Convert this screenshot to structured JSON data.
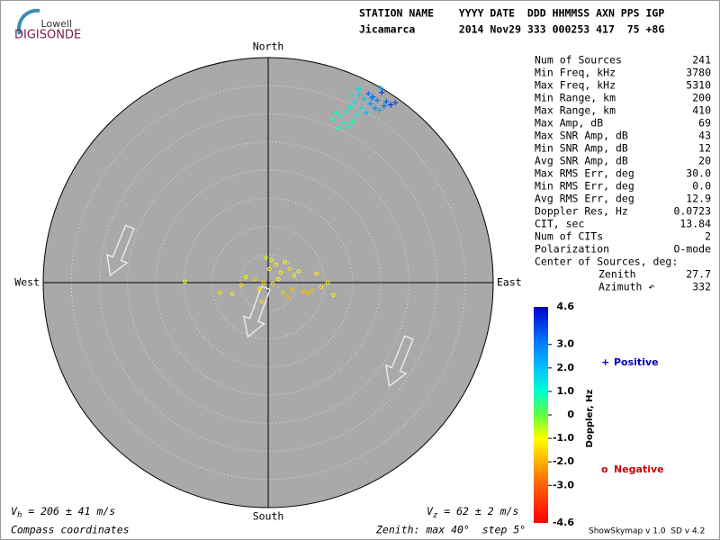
{
  "logo": {
    "brand": "Lowell",
    "product": "DIGISONDE"
  },
  "header": {
    "row1": "STATION NAME    YYYY DATE  DDD HHMMSS AXN PPS IGP",
    "row2": "Jicamarca       2014 Nov29 333 000253 417  75 +8G"
  },
  "stats": {
    "rows": [
      [
        "Num of Sources",
        "241"
      ],
      [
        "Min Freq, kHz",
        "3780"
      ],
      [
        "Max Freq, kHz",
        "5310"
      ],
      [
        "Min Range, km",
        "200"
      ],
      [
        "Max Range, km",
        "410"
      ],
      [
        "Max Amp, dB",
        "69"
      ],
      [
        "Max SNR Amp, dB",
        "43"
      ],
      [
        "Min SNR Amp, dB",
        "12"
      ],
      [
        "Avg SNR Amp, dB",
        "20"
      ],
      [
        "Max RMS Err, deg",
        "30.0"
      ],
      [
        "Min RMS Err, deg",
        "0.0"
      ],
      [
        "Avg RMS Err, deg",
        "12.9"
      ],
      [
        "Doppler Res, Hz",
        "0.0723"
      ],
      [
        "CIT, sec",
        "13.84"
      ],
      [
        "Num of CITs",
        "2"
      ],
      [
        "Polarization",
        "O-mode"
      ]
    ],
    "center_title": "Center of Sources, deg:",
    "center_rows": [
      [
        "Zenith",
        "27.7"
      ],
      [
        "Azimuth ↶",
        "332"
      ]
    ]
  },
  "chart_data": {
    "type": "skymap",
    "directions": {
      "north": "North",
      "east": "East",
      "south": "South",
      "west": "West"
    },
    "zenith_max": 40,
    "zenith_step": 5,
    "series": [
      {
        "name": "Positive",
        "marker": "+",
        "color": "#0000c0",
        "east": [
          17.8,
          18.6,
          19.4,
          20.2,
          21.0,
          21.8,
          22.6,
          18.2,
          19.0,
          19.8,
          20.6,
          17.0,
          16.2,
          15.4,
          14.6,
          13.8,
          13.0,
          12.2,
          11.4,
          16.6,
          15.8,
          15.0,
          14.2,
          13.4,
          17.4,
          18.4,
          16.0,
          14.8,
          12.6,
          20.0
        ],
        "north": [
          33.6,
          33.0,
          32.4,
          33.8,
          32.2,
          31.6,
          32.0,
          31.8,
          31.0,
          30.6,
          31.4,
          32.6,
          33.4,
          32.0,
          31.2,
          30.4,
          29.6,
          30.2,
          29.0,
          31.0,
          29.8,
          28.6,
          27.8,
          28.4,
          30.2,
          32.8,
          34.4,
          33.2,
          27.4,
          34.6
        ],
        "doppler": [
          3.2,
          3.5,
          3.0,
          3.8,
          3.4,
          4.0,
          3.6,
          2.6,
          2.8,
          2.2,
          3.1,
          1.8,
          1.6,
          1.4,
          1.2,
          1.0,
          0.9,
          0.8,
          0.7,
          1.5,
          1.1,
          0.9,
          0.8,
          1.0,
          2.0,
          2.5,
          1.7,
          1.3,
          0.8,
          2.4
        ]
      },
      {
        "name": "Negative",
        "marker": "o",
        "color": "#d00000",
        "east": [
          -14.8,
          -8.6,
          -6.4,
          -4.8,
          -4.0,
          -2.4,
          -1.6,
          -0.8,
          0.2,
          0.6,
          1.4,
          2.2,
          3.0,
          3.8,
          4.6,
          5.4,
          6.2,
          7.0,
          7.8,
          8.6,
          9.4,
          10.6,
          11.6,
          -1.2,
          0.8,
          1.8,
          2.6,
          3.4,
          4.2,
          -0.4
        ],
        "north": [
          0.2,
          -1.8,
          -2.0,
          -0.4,
          1.0,
          0.6,
          -1.2,
          0.0,
          2.4,
          4.0,
          3.2,
          1.8,
          3.6,
          2.4,
          1.2,
          2.0,
          -1.6,
          -2.0,
          -1.4,
          1.6,
          -0.8,
          0.0,
          -2.2,
          -3.4,
          -0.2,
          0.6,
          -1.8,
          -2.6,
          -1.2,
          4.4
        ],
        "doppler": [
          -1.0,
          -1.2,
          -1.1,
          -1.3,
          -1.0,
          -1.5,
          -1.2,
          -1.4,
          -1.0,
          -0.9,
          -1.1,
          -1.2,
          -1.0,
          -1.3,
          -1.1,
          -1.0,
          -1.8,
          -2.0,
          -1.9,
          -1.1,
          -1.3,
          -1.0,
          -1.2,
          -1.4,
          -1.6,
          -1.1,
          -1.7,
          -1.9,
          -1.8,
          -0.9
        ]
      }
    ],
    "colorbar": {
      "label": "Doppler, Hz",
      "lim": [
        -4.6,
        4.6
      ],
      "ticks": [
        {
          "value": 3,
          "label": "3.0"
        },
        {
          "value": 2,
          "label": "2.0"
        },
        {
          "value": 1,
          "label": "1.0"
        },
        0,
        {
          "value": -1,
          "label": "-1.0"
        },
        {
          "value": -2,
          "label": "-2.0"
        },
        {
          "value": -3,
          "label": "-3.0"
        }
      ],
      "colorscale": [
        [
          -4.6,
          "#ff0000"
        ],
        [
          -3,
          "#ff6000"
        ],
        [
          -2,
          "#ffb000"
        ],
        [
          -1,
          "#ffff00"
        ],
        [
          0,
          "#60ff40"
        ],
        [
          1,
          "#00ffd0"
        ],
        [
          2,
          "#00c0ff"
        ],
        [
          3,
          "#0080ff"
        ],
        [
          4.6,
          "#0000d0"
        ]
      ]
    }
  },
  "footer": {
    "vh": {
      "symbol": "V",
      "sub": "h",
      "text": " = 206 ± 41 m/s"
    },
    "vz": {
      "symbol": "V",
      "sub": "z",
      "text": " = 62 ± 2 m/s"
    },
    "coords": "Compass coordinates",
    "zenith": "Zenith: max 40°  step 5°",
    "version": "ShowSkymap v 1.0  SD v 4.2"
  }
}
